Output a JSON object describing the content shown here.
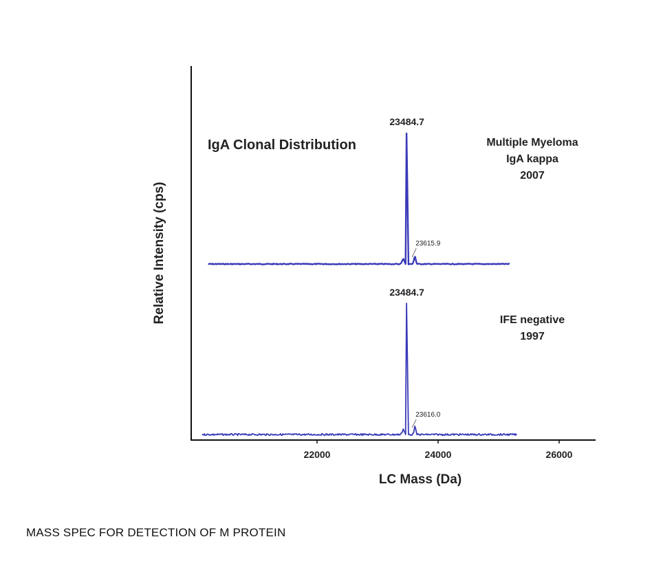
{
  "caption": "MASS SPEC FOR DETECTION OF M PROTEIN",
  "chart_data": {
    "type": "line",
    "title": "IgA Clonal Distribution",
    "xlabel": "LC Mass (Da)",
    "ylabel": "Relative Intensity (cps)",
    "xticks": [
      22000,
      24000,
      26000
    ],
    "xlim": [
      20000,
      26600
    ],
    "grid": false,
    "line_color": "#3a3ab8",
    "series": [
      {
        "name": "Multiple Myeloma IgA kappa 2007",
        "label_lines": [
          "Multiple Myeloma",
          "IgA kappa",
          "2007"
        ],
        "x_range": [
          20200,
          25180
        ],
        "peaks": [
          {
            "x": 23484.7,
            "height": 1.0,
            "label": "23484.7"
          },
          {
            "x": 23615.9,
            "height": 0.06,
            "label": "23615.9"
          }
        ]
      },
      {
        "name": "IFE negative 1997",
        "label_lines": [
          "IFE negative",
          "1997"
        ],
        "x_range": [
          20100,
          25300
        ],
        "peaks": [
          {
            "x": 23484.7,
            "height": 1.0,
            "label": "23484.7"
          },
          {
            "x": 23616.0,
            "height": 0.06,
            "label": "23616.0"
          }
        ]
      }
    ]
  }
}
